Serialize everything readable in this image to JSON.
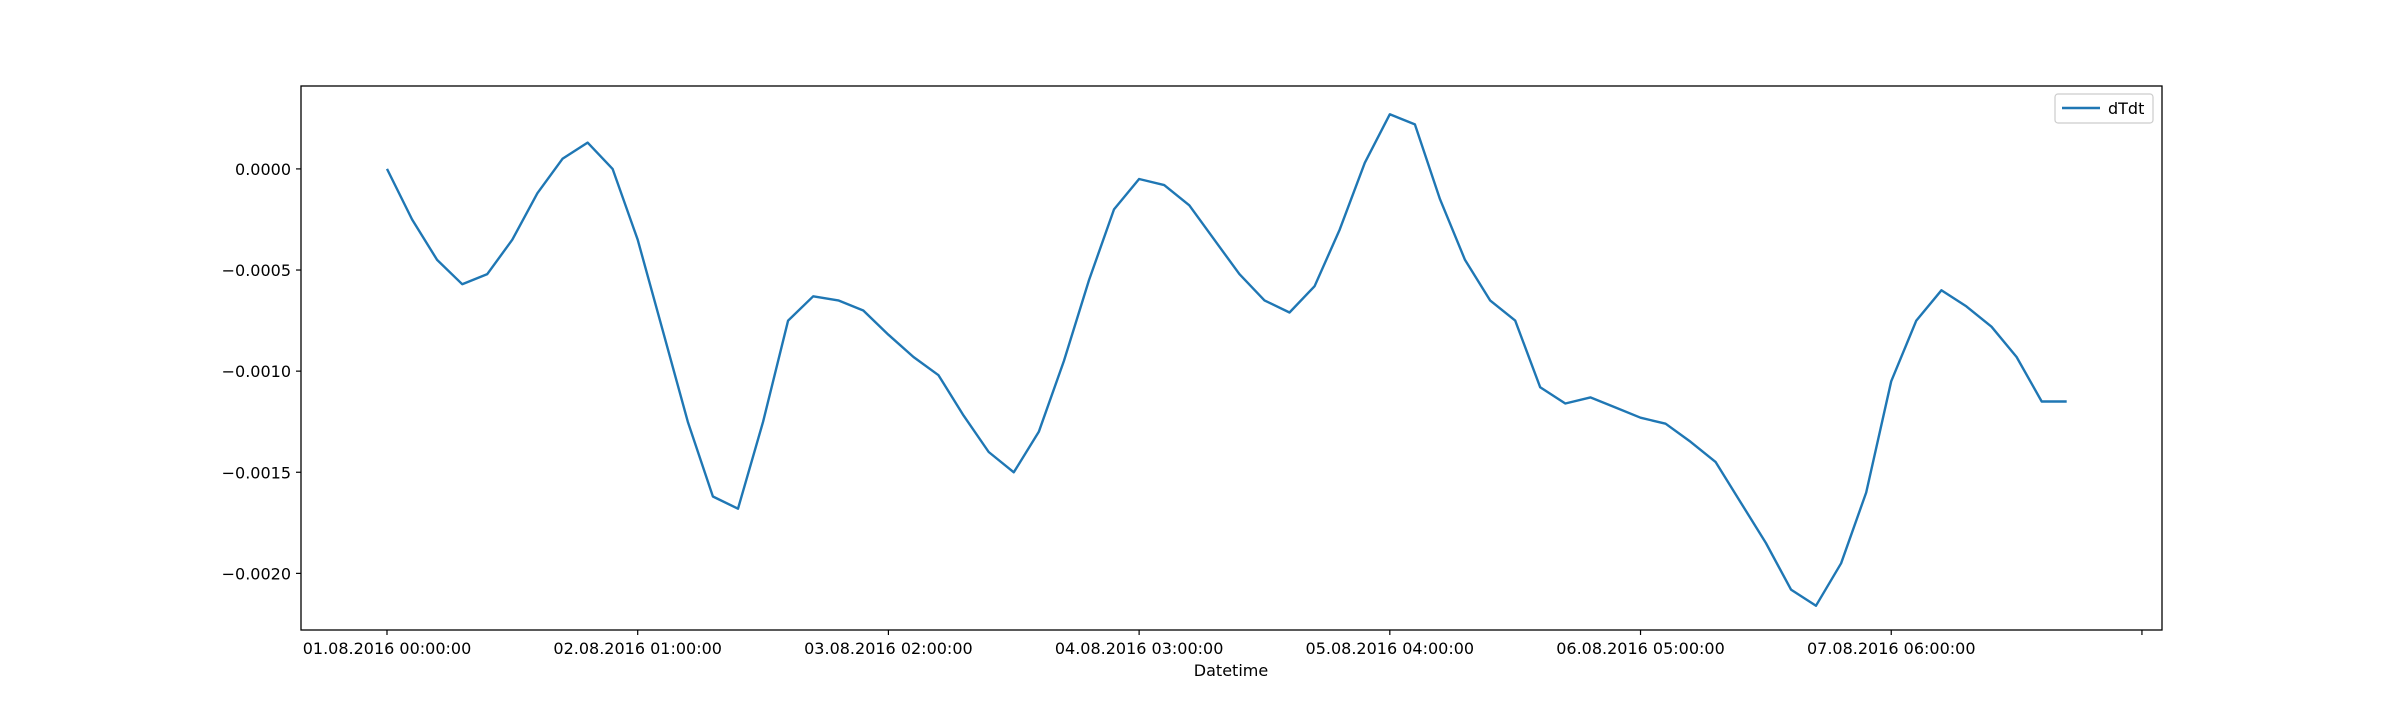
{
  "chart_data": {
    "type": "line",
    "title": "",
    "xlabel": "Datetime",
    "ylabel": "",
    "x_tick_labels": [
      "01.08.2016 00:00:00",
      "02.08.2016 01:00:00",
      "03.08.2016 02:00:00",
      "04.08.2016 03:00:00",
      "05.08.2016 04:00:00",
      "06.08.2016 05:00:00",
      "07.08.2016 06:00:00"
    ],
    "y_ticks": [
      -0.002,
      -0.0015,
      -0.001,
      -0.0005,
      0.0
    ],
    "y_tick_labels": [
      "−0.0020",
      "−0.0015",
      "−0.0010",
      "−0.0005",
      "0.0000"
    ],
    "ylim": [
      -0.00228,
      0.00041
    ],
    "xlim": [
      -0.343,
      7.08
    ],
    "grid": false,
    "legend_position": "top-right",
    "colors": {
      "series": "#1f77b4",
      "axes": "#000000",
      "background": "#ffffff"
    },
    "series": [
      {
        "name": "dTdt",
        "x": [
          0.0,
          0.1,
          0.2,
          0.3,
          0.4,
          0.5,
          0.6,
          0.7,
          0.8,
          0.9,
          1.0,
          1.1,
          1.2,
          1.3,
          1.4,
          1.5,
          1.6,
          1.7,
          1.8,
          1.9,
          2.0,
          2.1,
          2.2,
          2.3,
          2.4,
          2.5,
          2.6,
          2.7,
          2.8,
          2.9,
          3.0,
          3.1,
          3.2,
          3.3,
          3.4,
          3.5,
          3.6,
          3.7,
          3.8,
          3.9,
          4.0,
          4.1,
          4.2,
          4.3,
          4.4,
          4.5,
          4.6,
          4.7,
          4.8,
          4.9,
          5.0,
          5.1,
          5.2,
          5.3,
          5.4,
          5.5,
          5.6,
          5.7,
          5.8,
          5.9,
          6.0,
          6.1,
          6.2,
          6.3,
          6.4,
          6.5,
          6.6,
          6.7
        ],
        "y": [
          0.0,
          -0.00025,
          -0.00045,
          -0.00057,
          -0.00052,
          -0.00035,
          -0.00012,
          5e-05,
          0.00013,
          0.0,
          -0.00035,
          -0.0008,
          -0.00125,
          -0.00162,
          -0.00168,
          -0.00125,
          -0.00075,
          -0.00063,
          -0.00065,
          -0.0007,
          -0.00082,
          -0.00093,
          -0.00102,
          -0.00122,
          -0.0014,
          -0.0015,
          -0.0013,
          -0.00095,
          -0.00055,
          -0.0002,
          -5e-05,
          -8e-05,
          -0.00018,
          -0.00035,
          -0.00052,
          -0.00065,
          -0.00071,
          -0.00058,
          -0.0003,
          3e-05,
          0.00027,
          0.00022,
          -0.00015,
          -0.00045,
          -0.00065,
          -0.00075,
          -0.00108,
          -0.00116,
          -0.00113,
          -0.00118,
          -0.00123,
          -0.00126,
          -0.00135,
          -0.00145,
          -0.00165,
          -0.00185,
          -0.00208,
          -0.00216,
          -0.00195,
          -0.0016,
          -0.00105,
          -0.00075,
          -0.0006,
          -0.00068,
          -0.00078,
          -0.00093,
          -0.00115,
          -0.00115
        ]
      }
    ]
  }
}
